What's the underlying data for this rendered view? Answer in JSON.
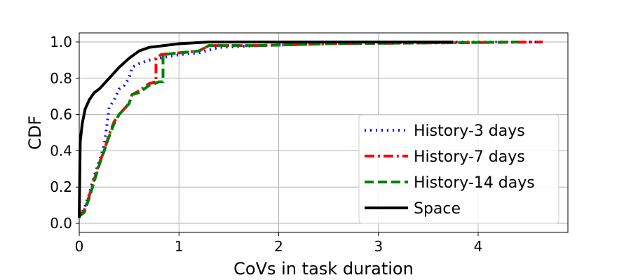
{
  "chart_data": {
    "type": "line",
    "xlabel": "CoVs in task duration",
    "ylabel": "CDF",
    "xlim": [
      0,
      4.9
    ],
    "ylim": [
      -0.05,
      1.05
    ],
    "x_ticks": [
      0,
      1,
      2,
      3,
      4
    ],
    "y_ticks": [
      0.0,
      0.2,
      0.4,
      0.6,
      0.8,
      1.0
    ],
    "x_tick_labels": [
      "0",
      "1",
      "2",
      "3",
      "4"
    ],
    "y_tick_labels": [
      "0.0",
      "0.2",
      "0.4",
      "0.6",
      "0.8",
      "1.0"
    ],
    "grid": true,
    "legend_position": "lower-right",
    "series": [
      {
        "name": "History-3 days",
        "color": "#0000ff",
        "style": "dotted",
        "points": [
          [
            0,
            0.04
          ],
          [
            0.05,
            0.08
          ],
          [
            0.1,
            0.16
          ],
          [
            0.15,
            0.26
          ],
          [
            0.2,
            0.34
          ],
          [
            0.25,
            0.43
          ],
          [
            0.28,
            0.55
          ],
          [
            0.3,
            0.64
          ],
          [
            0.35,
            0.68
          ],
          [
            0.4,
            0.74
          ],
          [
            0.45,
            0.76
          ],
          [
            0.5,
            0.8
          ],
          [
            0.53,
            0.86
          ],
          [
            0.6,
            0.88
          ],
          [
            0.7,
            0.9
          ],
          [
            0.8,
            0.91
          ],
          [
            1.0,
            0.93
          ],
          [
            1.2,
            0.94
          ],
          [
            1.4,
            0.97
          ],
          [
            1.8,
            0.98
          ],
          [
            2.5,
            0.99
          ],
          [
            3.5,
            1.0
          ],
          [
            4.65,
            1.0
          ]
        ]
      },
      {
        "name": "History-7 days",
        "color": "#ff0000",
        "style": "dashdot",
        "points": [
          [
            0,
            0.04
          ],
          [
            0.05,
            0.07
          ],
          [
            0.1,
            0.15
          ],
          [
            0.15,
            0.24
          ],
          [
            0.2,
            0.33
          ],
          [
            0.25,
            0.4
          ],
          [
            0.3,
            0.49
          ],
          [
            0.35,
            0.56
          ],
          [
            0.4,
            0.6
          ],
          [
            0.45,
            0.63
          ],
          [
            0.5,
            0.66
          ],
          [
            0.53,
            0.71
          ],
          [
            0.6,
            0.73
          ],
          [
            0.65,
            0.75
          ],
          [
            0.7,
            0.77
          ],
          [
            0.77,
            0.78
          ],
          [
            0.77,
            0.91
          ],
          [
            0.82,
            0.93
          ],
          [
            1.0,
            0.94
          ],
          [
            1.2,
            0.95
          ],
          [
            1.3,
            0.98
          ],
          [
            1.8,
            0.98
          ],
          [
            2.5,
            0.99
          ],
          [
            4.65,
            1.0
          ]
        ]
      },
      {
        "name": "History-14 days",
        "color": "#008000",
        "style": "dashed",
        "points": [
          [
            0,
            0.04
          ],
          [
            0.05,
            0.06
          ],
          [
            0.1,
            0.14
          ],
          [
            0.15,
            0.23
          ],
          [
            0.2,
            0.32
          ],
          [
            0.25,
            0.4
          ],
          [
            0.3,
            0.48
          ],
          [
            0.35,
            0.55
          ],
          [
            0.4,
            0.6
          ],
          [
            0.45,
            0.63
          ],
          [
            0.5,
            0.66
          ],
          [
            0.53,
            0.71
          ],
          [
            0.6,
            0.72
          ],
          [
            0.7,
            0.76
          ],
          [
            0.8,
            0.78
          ],
          [
            0.84,
            0.78
          ],
          [
            0.84,
            0.93
          ],
          [
            1.0,
            0.94
          ],
          [
            1.2,
            0.95
          ],
          [
            1.3,
            0.98
          ],
          [
            1.8,
            0.98
          ],
          [
            2.5,
            0.99
          ],
          [
            4.4,
            1.0
          ]
        ]
      },
      {
        "name": "Space",
        "color": "#000000",
        "style": "solid",
        "points": [
          [
            0,
            0.03
          ],
          [
            0.01,
            0.45
          ],
          [
            0.03,
            0.55
          ],
          [
            0.06,
            0.63
          ],
          [
            0.1,
            0.68
          ],
          [
            0.15,
            0.72
          ],
          [
            0.2,
            0.74
          ],
          [
            0.3,
            0.8
          ],
          [
            0.4,
            0.86
          ],
          [
            0.5,
            0.91
          ],
          [
            0.6,
            0.95
          ],
          [
            0.7,
            0.97
          ],
          [
            0.85,
            0.98
          ],
          [
            1.0,
            0.99
          ],
          [
            1.3,
            1.0
          ],
          [
            2.0,
            1.0
          ],
          [
            3.75,
            1.0
          ]
        ]
      }
    ]
  }
}
